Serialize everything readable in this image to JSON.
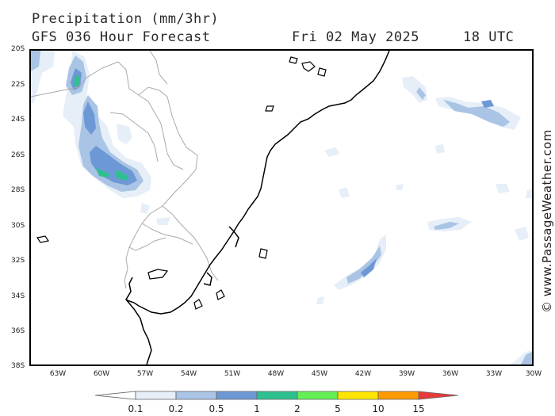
{
  "header": {
    "title": "Precipitation (mm/3hr)",
    "model": "GFS 036 Hour Forecast",
    "date": "Fri 02 May 2025",
    "time": "18 UTC"
  },
  "map": {
    "lat_labels": [
      "20S",
      "22S",
      "24S",
      "26S",
      "28S",
      "30S",
      "32S",
      "34S",
      "36S",
      "38S"
    ],
    "lon_labels": [
      "63W",
      "60W",
      "57W",
      "54W",
      "51W",
      "48W",
      "45W",
      "42W",
      "39W",
      "36W",
      "33W",
      "30W"
    ],
    "region": "southern-brazil-uruguay-south-atlantic"
  },
  "credit": "© www.PassageWeather.com",
  "legend": {
    "labels": [
      "0.1",
      "0.2",
      "0.5",
      "1",
      "2",
      "5",
      "10",
      "15"
    ],
    "colors": [
      "#ffffff",
      "#e6eef8",
      "#a9c4e4",
      "#6d98d6",
      "#2ec08f",
      "#66ee55",
      "#ffe600",
      "#ff9900",
      "#e83a3a"
    ]
  }
}
